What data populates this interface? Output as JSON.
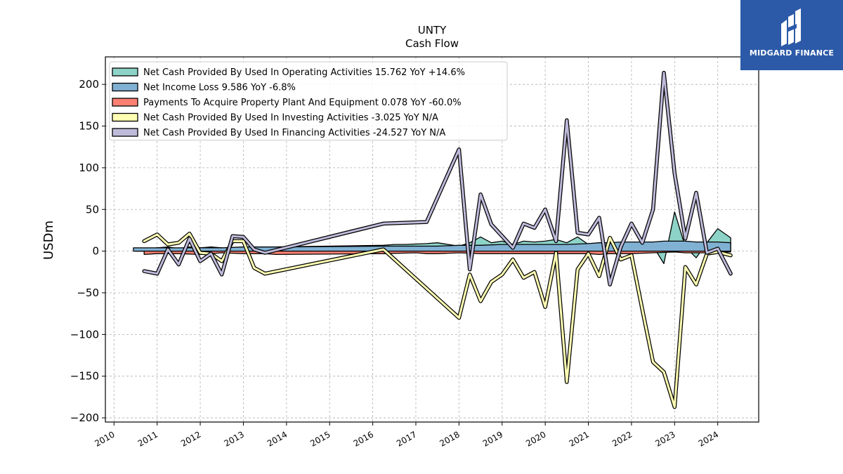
{
  "chart_data": {
    "type": "line",
    "title": "UNTY",
    "subtitle": "Cash Flow",
    "ylabel": "USDm",
    "xlabel": "",
    "xlim": [
      2009.8,
      2024.95
    ],
    "ylim": [
      -205,
      233
    ],
    "x_ticks": [
      2010,
      2011,
      2012,
      2013,
      2014,
      2015,
      2016,
      2017,
      2018,
      2019,
      2020,
      2021,
      2022,
      2023,
      2024
    ],
    "y_ticks": [
      200,
      150,
      100,
      50,
      0,
      -50,
      -100,
      -150,
      -200
    ],
    "y_tick_labels": [
      "200",
      "150",
      "100",
      "50",
      "0",
      "−50",
      "−100",
      "−150",
      "−200"
    ],
    "grid": true,
    "legend_position": "top-left",
    "series": [
      {
        "name": "Net Cash Provided By Used In Operating Activities",
        "legend": "Net Cash Provided By Used In Operating Activities  15.762 YoY +14.6%",
        "color": "#8dd3c7",
        "style": "fill",
        "points": [
          [
            2010.5,
            2
          ],
          [
            2010.75,
            3
          ],
          [
            2011.0,
            4
          ],
          [
            2011.25,
            5
          ],
          [
            2011.5,
            3
          ],
          [
            2011.75,
            5
          ],
          [
            2012.0,
            4
          ],
          [
            2012.25,
            5
          ],
          [
            2012.5,
            4
          ],
          [
            2012.75,
            3
          ],
          [
            2013.0,
            5
          ],
          [
            2013.25,
            4
          ],
          [
            2013.5,
            5
          ],
          [
            2013.75,
            5
          ],
          [
            2016.25,
            7
          ],
          [
            2016.5,
            8
          ],
          [
            2016.75,
            8
          ],
          [
            2017.25,
            9
          ],
          [
            2017.5,
            10
          ],
          [
            2017.75,
            8
          ],
          [
            2018.0,
            6
          ],
          [
            2018.25,
            10
          ],
          [
            2018.5,
            17
          ],
          [
            2018.75,
            10
          ],
          [
            2019.0,
            12
          ],
          [
            2019.25,
            8
          ],
          [
            2019.5,
            12
          ],
          [
            2019.75,
            11
          ],
          [
            2020.0,
            12
          ],
          [
            2020.25,
            14
          ],
          [
            2020.5,
            10
          ],
          [
            2020.75,
            17
          ],
          [
            2021.0,
            8
          ],
          [
            2021.25,
            9
          ],
          [
            2021.5,
            8
          ],
          [
            2021.75,
            10
          ],
          [
            2022.0,
            7
          ],
          [
            2022.25,
            6
          ],
          [
            2022.5,
            6
          ],
          [
            2022.75,
            -15
          ],
          [
            2023.0,
            47
          ],
          [
            2023.25,
            5
          ],
          [
            2023.5,
            -8
          ],
          [
            2023.75,
            10
          ],
          [
            2024.0,
            27
          ],
          [
            2024.3,
            16
          ]
        ]
      },
      {
        "name": "Net Income Loss",
        "legend": "Net Income Loss  9.586 YoY -6.8%",
        "color": "#80b1d3",
        "style": "fill",
        "points": [
          [
            2010.45,
            4
          ],
          [
            2010.7,
            4
          ],
          [
            2011.0,
            4
          ],
          [
            2011.5,
            4
          ],
          [
            2012.0,
            4
          ],
          [
            2012.5,
            4
          ],
          [
            2013.0,
            5
          ],
          [
            2013.5,
            5
          ],
          [
            2013.75,
            5
          ],
          [
            2016.25,
            6
          ],
          [
            2016.5,
            6
          ],
          [
            2017.0,
            6
          ],
          [
            2017.5,
            6
          ],
          [
            2018.0,
            7
          ],
          [
            2018.25,
            7
          ],
          [
            2018.5,
            7
          ],
          [
            2019.0,
            8
          ],
          [
            2019.5,
            8
          ],
          [
            2020.0,
            8
          ],
          [
            2020.5,
            8
          ],
          [
            2021.0,
            9
          ],
          [
            2021.25,
            10
          ],
          [
            2021.5,
            10
          ],
          [
            2021.75,
            11
          ],
          [
            2022.0,
            11
          ],
          [
            2022.25,
            11
          ],
          [
            2022.5,
            11
          ],
          [
            2022.75,
            12
          ],
          [
            2023.0,
            12
          ],
          [
            2023.25,
            12
          ],
          [
            2023.5,
            11
          ],
          [
            2023.75,
            11
          ],
          [
            2024.0,
            11
          ],
          [
            2024.3,
            10
          ]
        ]
      },
      {
        "name": "Payments To Acquire Property Plant And Equipment",
        "legend": "Payments To Acquire Property Plant And Equipment  0.078 YoY -60.0%",
        "color": "#fb8072",
        "style": "fill",
        "points": [
          [
            2010.7,
            -4
          ],
          [
            2011.0,
            -3
          ],
          [
            2011.5,
            -3
          ],
          [
            2012.0,
            -4
          ],
          [
            2012.5,
            -2
          ],
          [
            2013.0,
            -3
          ],
          [
            2013.5,
            -3
          ],
          [
            2013.75,
            -4
          ],
          [
            2016.25,
            -3
          ],
          [
            2017.0,
            -2
          ],
          [
            2017.25,
            -3
          ],
          [
            2017.5,
            -3
          ],
          [
            2018.0,
            -2
          ],
          [
            2018.5,
            -3
          ],
          [
            2019.0,
            -3
          ],
          [
            2019.5,
            -3
          ],
          [
            2020.0,
            -3
          ],
          [
            2020.5,
            -3
          ],
          [
            2021.0,
            -3
          ],
          [
            2021.25,
            -4
          ],
          [
            2021.5,
            -3
          ],
          [
            2022.0,
            -3
          ],
          [
            2022.5,
            -2
          ],
          [
            2023.0,
            -1
          ],
          [
            2023.25,
            -2
          ],
          [
            2023.5,
            -2
          ],
          [
            2023.75,
            -2
          ],
          [
            2024.0,
            -1
          ],
          [
            2024.3,
            -1
          ]
        ]
      },
      {
        "name": "Net Cash Provided By Used In Investing Activities",
        "legend": "Net Cash Provided By Used In Investing Activities  -3.025 YoY N/A",
        "color": "#ffffb3",
        "style": "line",
        "points": [
          [
            2010.7,
            12
          ],
          [
            2011.0,
            20
          ],
          [
            2011.25,
            8
          ],
          [
            2011.5,
            10
          ],
          [
            2011.75,
            21
          ],
          [
            2012.0,
            -2
          ],
          [
            2012.25,
            -3
          ],
          [
            2012.5,
            -12
          ],
          [
            2012.75,
            12
          ],
          [
            2013.0,
            12
          ],
          [
            2013.25,
            -20
          ],
          [
            2013.5,
            -27
          ],
          [
            2016.25,
            2
          ],
          [
            2018.0,
            -80
          ],
          [
            2018.25,
            -28
          ],
          [
            2018.5,
            -60
          ],
          [
            2018.75,
            -37
          ],
          [
            2019.0,
            -28
          ],
          [
            2019.25,
            -10
          ],
          [
            2019.5,
            -32
          ],
          [
            2019.75,
            -25
          ],
          [
            2020.0,
            -67
          ],
          [
            2020.25,
            -2
          ],
          [
            2020.5,
            -157
          ],
          [
            2020.75,
            -22
          ],
          [
            2021.0,
            -3
          ],
          [
            2021.25,
            -30
          ],
          [
            2021.5,
            16
          ],
          [
            2021.75,
            -10
          ],
          [
            2022.0,
            -5
          ],
          [
            2022.25,
            -70
          ],
          [
            2022.5,
            -133
          ],
          [
            2022.75,
            -145
          ],
          [
            2023.0,
            -187
          ],
          [
            2023.25,
            -19
          ],
          [
            2023.5,
            -40
          ],
          [
            2023.75,
            -3
          ],
          [
            2024.0,
            -1
          ],
          [
            2024.3,
            -5
          ]
        ]
      },
      {
        "name": "Net Cash Provided By Used In Financing Activities",
        "legend": "Net Cash Provided By Used In Financing Activities  -24.527 YoY N/A",
        "color": "#bebada",
        "style": "line",
        "points": [
          [
            2010.7,
            -24
          ],
          [
            2011.0,
            -27
          ],
          [
            2011.25,
            2
          ],
          [
            2011.5,
            -16
          ],
          [
            2011.75,
            15
          ],
          [
            2012.0,
            -12
          ],
          [
            2012.25,
            -3
          ],
          [
            2012.5,
            -28
          ],
          [
            2012.75,
            18
          ],
          [
            2013.0,
            17
          ],
          [
            2013.25,
            2
          ],
          [
            2013.5,
            -2
          ],
          [
            2016.25,
            33
          ],
          [
            2017.25,
            35
          ],
          [
            2018.0,
            122
          ],
          [
            2018.25,
            -22
          ],
          [
            2018.5,
            68
          ],
          [
            2018.75,
            32
          ],
          [
            2019.0,
            18
          ],
          [
            2019.25,
            4
          ],
          [
            2019.5,
            33
          ],
          [
            2019.75,
            28
          ],
          [
            2020.0,
            50
          ],
          [
            2020.25,
            12
          ],
          [
            2020.5,
            157
          ],
          [
            2020.75,
            22
          ],
          [
            2021.0,
            20
          ],
          [
            2021.25,
            40
          ],
          [
            2021.5,
            -40
          ],
          [
            2021.75,
            5
          ],
          [
            2022.0,
            33
          ],
          [
            2022.25,
            10
          ],
          [
            2022.5,
            50
          ],
          [
            2022.75,
            214
          ],
          [
            2023.0,
            93
          ],
          [
            2023.25,
            15
          ],
          [
            2023.5,
            70
          ],
          [
            2023.75,
            -2
          ],
          [
            2024.0,
            3
          ],
          [
            2024.3,
            -27
          ]
        ]
      }
    ]
  },
  "logo": {
    "brand_name": "MIDGARD FINANCE",
    "colors": {
      "background": "#2c5aa8",
      "foreground": "#ffffff"
    }
  }
}
